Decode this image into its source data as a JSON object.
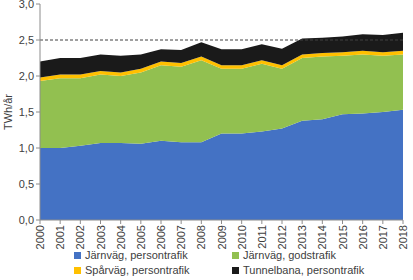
{
  "chart_data": {
    "type": "area",
    "stacked": true,
    "grid": false,
    "legend": "bottom",
    "y_label": "TWh/år",
    "categories": [
      "2000",
      "2001",
      "2002",
      "2003",
      "2004",
      "2005",
      "2006",
      "2007",
      "2008",
      "2009",
      "2010",
      "2011",
      "2012",
      "2013",
      "2014",
      "2015",
      "2016",
      "2017",
      "2018"
    ],
    "ylim": [
      0,
      3
    ],
    "yticks": [
      {
        "value": 0,
        "label": "0,0"
      },
      {
        "value": 0.5,
        "label": "0,5"
      },
      {
        "value": 1,
        "label": "1,0"
      },
      {
        "value": 1.5,
        "label": "1,5"
      },
      {
        "value": 2,
        "label": "2,0"
      },
      {
        "value": 2.5,
        "label": "2,5"
      },
      {
        "value": 3,
        "label": "3,0"
      }
    ],
    "reference_line": 2.5,
    "series": [
      {
        "name": "Järnväg, persontrafik",
        "color": "#4472c4",
        "values": [
          1.0,
          1.0,
          1.03,
          1.07,
          1.07,
          1.06,
          1.1,
          1.08,
          1.08,
          1.2,
          1.2,
          1.23,
          1.27,
          1.38,
          1.4,
          1.47,
          1.48,
          1.5,
          1.53
        ]
      },
      {
        "name": "Järnväg, godstrafik",
        "color": "#92c050",
        "values": [
          0.93,
          0.97,
          0.94,
          0.95,
          0.93,
          0.99,
          1.05,
          1.05,
          1.14,
          0.9,
          0.9,
          0.94,
          0.83,
          0.87,
          0.87,
          0.81,
          0.82,
          0.78,
          0.77
        ]
      },
      {
        "name": "Spårväg, persontrafik",
        "color": "#ffc000",
        "values": [
          0.05,
          0.05,
          0.05,
          0.05,
          0.05,
          0.05,
          0.05,
          0.05,
          0.05,
          0.05,
          0.05,
          0.05,
          0.05,
          0.05,
          0.05,
          0.05,
          0.05,
          0.05,
          0.05
        ]
      },
      {
        "name": "Tunnelbana, persontrafik",
        "color": "#1a1a1a",
        "values": [
          0.22,
          0.23,
          0.23,
          0.23,
          0.23,
          0.2,
          0.17,
          0.18,
          0.2,
          0.22,
          0.22,
          0.22,
          0.23,
          0.22,
          0.21,
          0.22,
          0.23,
          0.24,
          0.25
        ]
      }
    ]
  }
}
